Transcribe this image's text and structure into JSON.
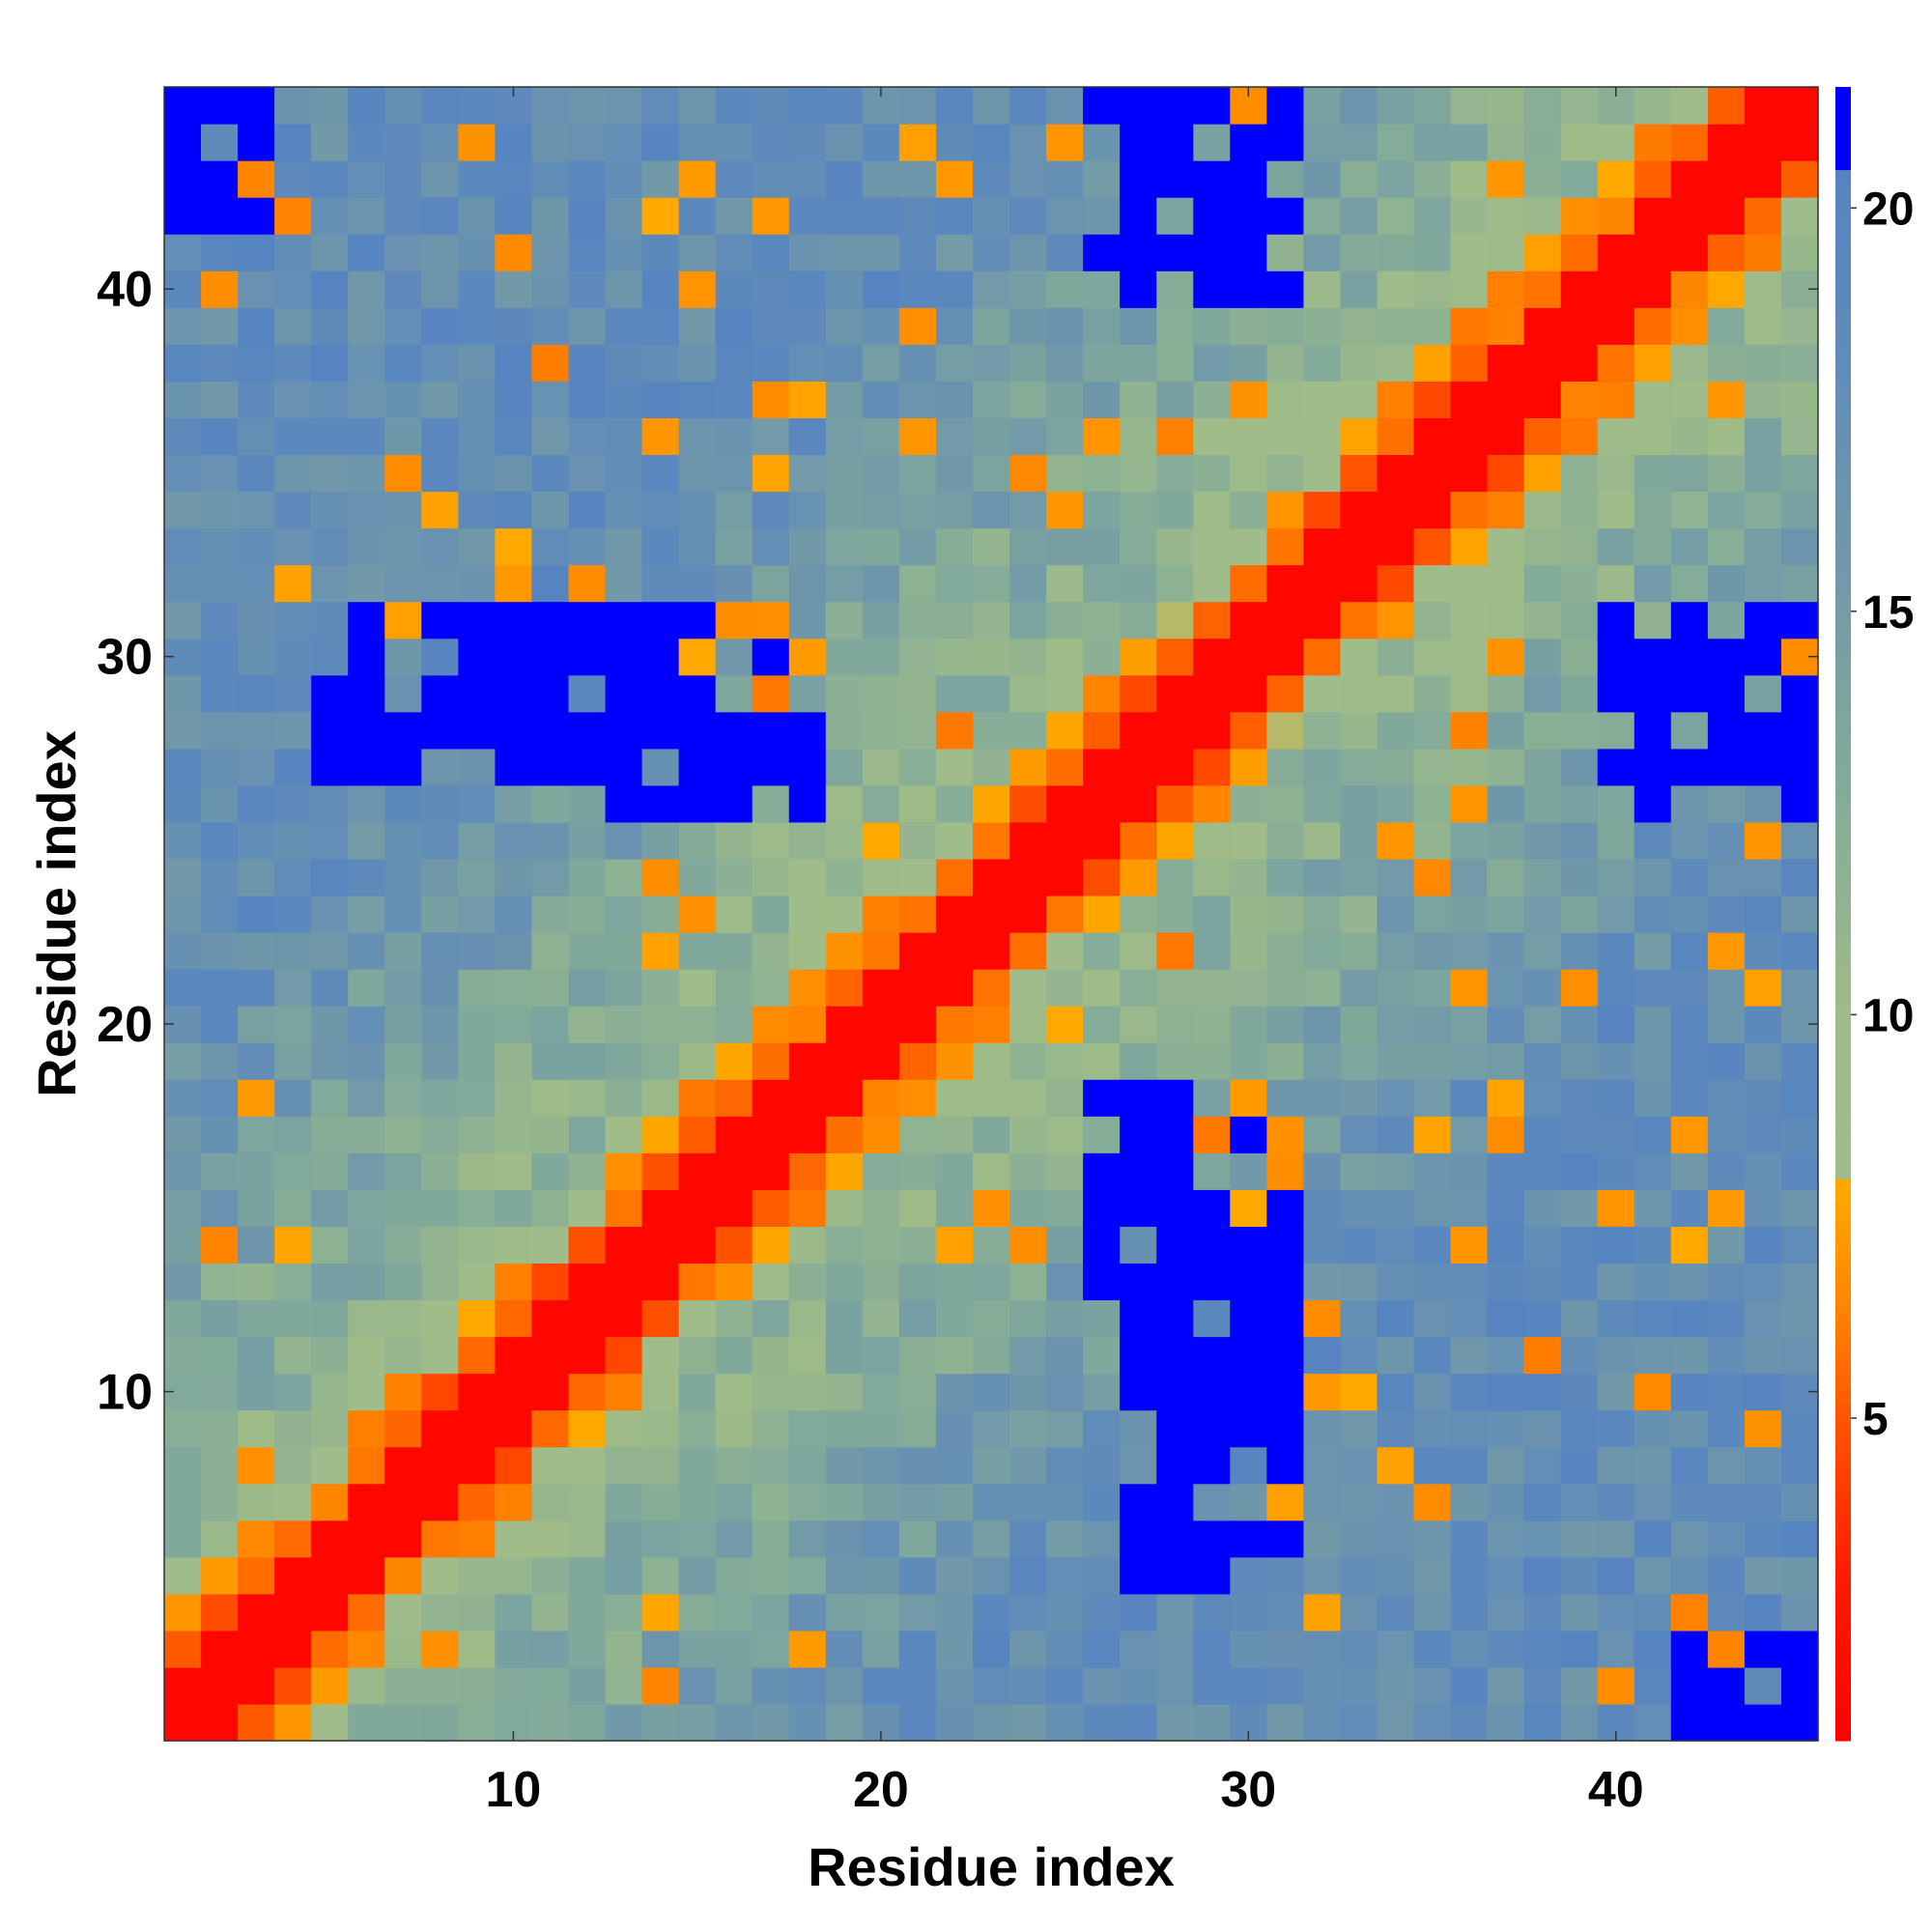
{
  "chart_data": {
    "type": "heatmap",
    "title": "",
    "xlabel": "Residue index",
    "ylabel": "Residue index",
    "n_residues": 45,
    "x_ticks": [
      10,
      20,
      30,
      40
    ],
    "x_tick_labels": [
      "10",
      "20",
      "30",
      "40"
    ],
    "y_ticks": [
      10,
      20,
      30,
      40
    ],
    "y_tick_labels": [
      "10",
      "20",
      "30",
      "40"
    ],
    "colorbar": {
      "range": [
        1,
        21.5
      ],
      "ticks": [
        5,
        10,
        15,
        20
      ],
      "tick_labels": [
        "5",
        "10",
        "15",
        "20"
      ],
      "stops": [
        {
          "v": 1.0,
          "color": "#ff0000"
        },
        {
          "v": 3.0,
          "color": "#ff1a00"
        },
        {
          "v": 5.0,
          "color": "#ff5500"
        },
        {
          "v": 6.5,
          "color": "#ff8800"
        },
        {
          "v": 8.0,
          "color": "#ffaa00"
        },
        {
          "v": 8.01,
          "color": "#a0bc8a"
        },
        {
          "v": 10.0,
          "color": "#9ebb88"
        },
        {
          "v": 13.0,
          "color": "#82aa9a"
        },
        {
          "v": 16.0,
          "color": "#6e96ab"
        },
        {
          "v": 19.0,
          "color": "#5b88bd"
        },
        {
          "v": 20.5,
          "color": "#5684c0"
        },
        {
          "v": 20.51,
          "color": "#0000ff"
        },
        {
          "v": 21.5,
          "color": "#0000ff"
        }
      ]
    },
    "blue_threshold": 20.5,
    "values_description_rule": "symmetric distance map: value(i,j) = |i-j| + structured deviations"
  }
}
